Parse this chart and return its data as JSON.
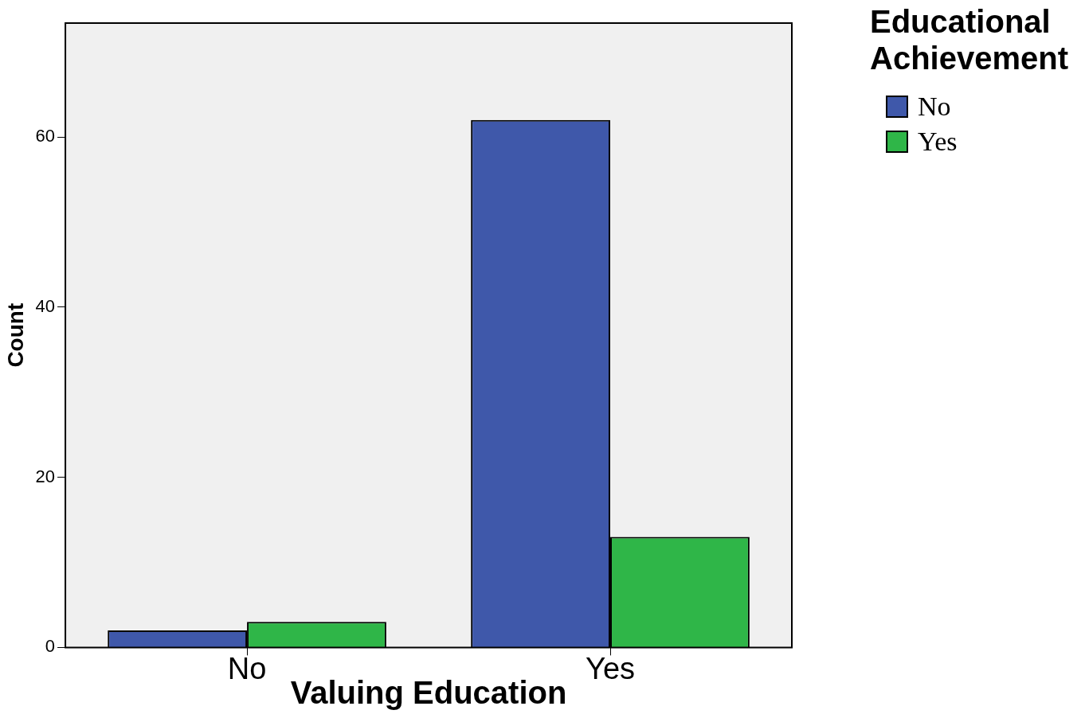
{
  "chart_data": {
    "type": "bar",
    "xlabel": "Valuing Education",
    "ylabel": "Count",
    "legend_title": "Educational Achievement",
    "categories": [
      "No",
      "Yes"
    ],
    "series": [
      {
        "name": "No",
        "color": "#3f58aa",
        "values": [
          2,
          62
        ]
      },
      {
        "name": "Yes",
        "color": "#2fb648",
        "values": [
          3,
          13
        ]
      }
    ],
    "ylim": [
      0,
      73.4
    ],
    "yticks": [
      0,
      20,
      40,
      60
    ],
    "grid": false,
    "legend": "top right"
  }
}
